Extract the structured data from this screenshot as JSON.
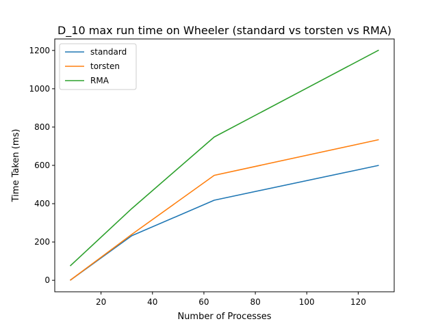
{
  "chart_data": {
    "type": "line",
    "title": "D_10 max run time on Wheeler (standard vs torsten vs RMA)",
    "xlabel": "Number of Processes",
    "ylabel": "Time Taken (ms)",
    "xlim": [
      2,
      134
    ],
    "ylim": [
      -60,
      1260
    ],
    "x_ticks": [
      20,
      40,
      60,
      80,
      100,
      120
    ],
    "y_ticks": [
      0,
      200,
      400,
      600,
      800,
      1000,
      1200
    ],
    "grid": false,
    "legend_position": "top-left",
    "series": [
      {
        "name": "standard",
        "color": "#1f77b4",
        "x": [
          8,
          32,
          64,
          128
        ],
        "y": [
          0,
          233,
          418,
          600
        ]
      },
      {
        "name": "torsten",
        "color": "#ff7f0e",
        "x": [
          8,
          32,
          64,
          128
        ],
        "y": [
          0,
          240,
          548,
          734
        ]
      },
      {
        "name": "RMA",
        "color": "#2ca02c",
        "x": [
          8,
          32,
          64,
          128
        ],
        "y": [
          75,
          375,
          748,
          1202
        ]
      }
    ]
  }
}
